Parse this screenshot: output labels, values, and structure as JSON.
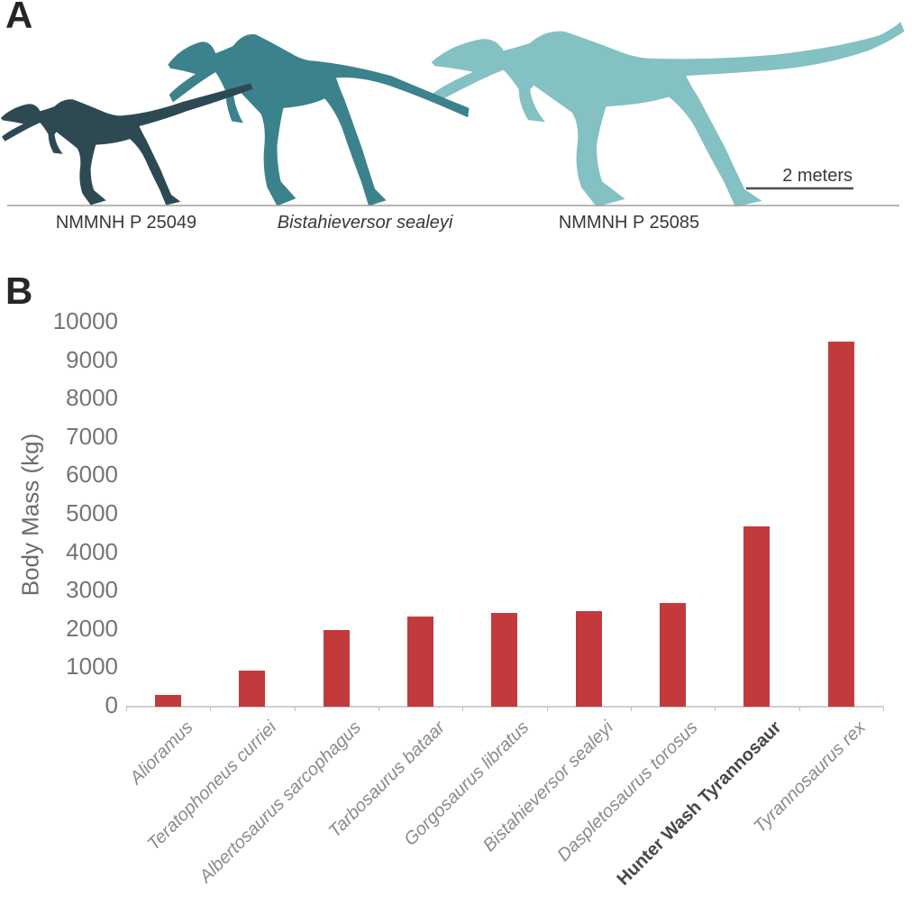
{
  "panels": {
    "a_label": "A",
    "b_label": "B"
  },
  "panel_a": {
    "captions": [
      {
        "text": "NMMNH P 25049",
        "style": "normal"
      },
      {
        "text": "Bistahieversor sealeyi",
        "style": "italic"
      },
      {
        "text": "NMMNH P 25085",
        "style": "normal"
      }
    ],
    "scale_bar_label": "2 meters",
    "silhouette_colors": {
      "nmmnh_p_25049": "#2d4a52",
      "bistahieversor_sealeyi": "#3b828c",
      "nmmnh_p_25085": "#83c1c3"
    }
  },
  "chart_data": {
    "type": "bar",
    "title": "",
    "xlabel": "",
    "ylabel": "Body Mass (kg)",
    "ylim": [
      0,
      10000
    ],
    "ytick_step": 1000,
    "grid": false,
    "legend": "none",
    "bar_color": "#c23a3c",
    "categories": [
      "Alioramus",
      "Teratophoneus curriei",
      "Albertosaurus sarcophagus",
      "Tarbosaurus bataar",
      "Gorgosaurus libratus",
      "Bistahieversor sealeyi",
      "Daspletosaurus torosus",
      "Hunter Wash Tyrannosaur",
      "Tyrannosaurus rex"
    ],
    "category_styles": [
      "italic",
      "italic",
      "italic",
      "italic",
      "italic",
      "italic",
      "italic",
      "bold",
      "italic"
    ],
    "values": [
      300,
      950,
      2000,
      2350,
      2450,
      2500,
      2700,
      4700,
      9500
    ]
  }
}
